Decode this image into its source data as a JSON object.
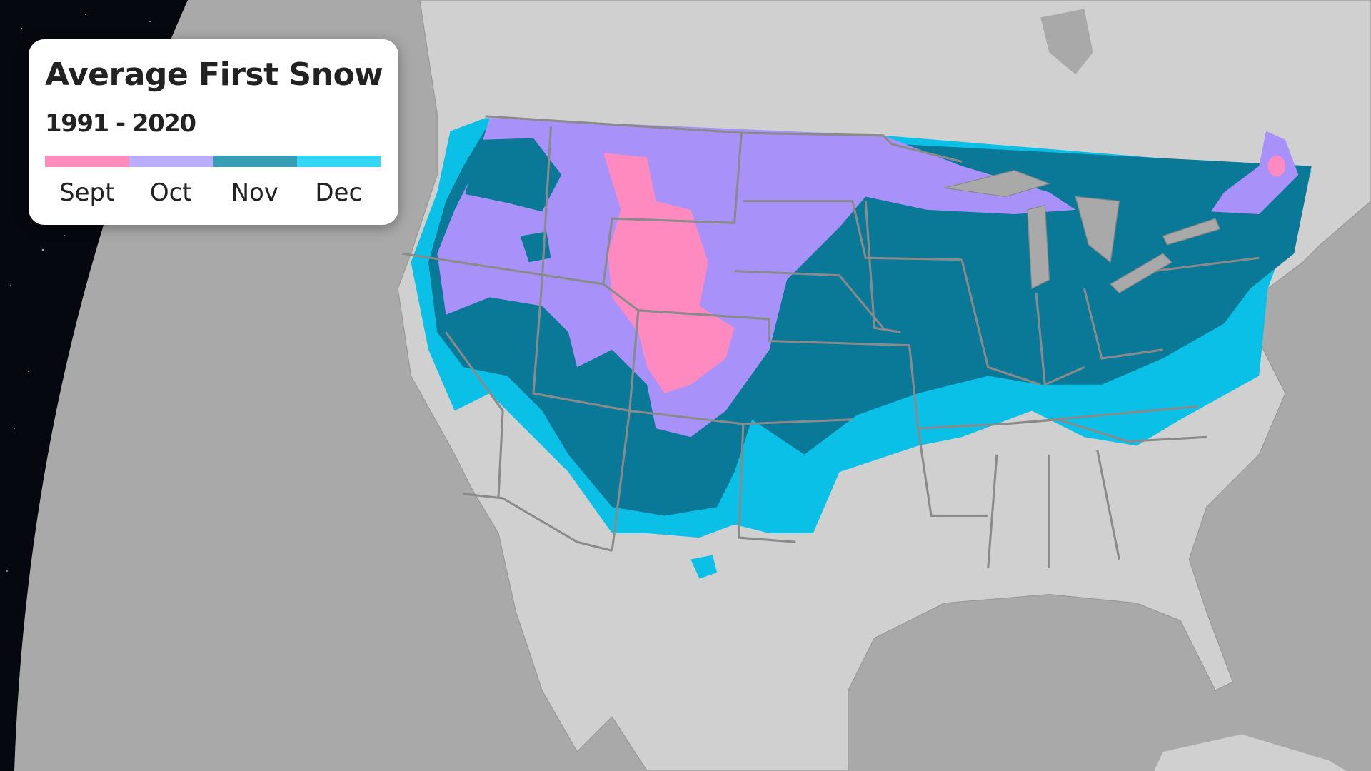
{
  "legend": {
    "title": "Average First Snow",
    "subtitle": "1991 - 2020",
    "items": [
      {
        "label": "Sept",
        "color": "#ff8cbd"
      },
      {
        "label": "Oct",
        "color": "#b9adfc"
      },
      {
        "label": "Nov",
        "color": "#389db6"
      },
      {
        "label": "Dec",
        "color": "#33d8f6"
      }
    ]
  },
  "map_colors": {
    "sept": "#ff8ac0",
    "oct": "#a892fa",
    "nov": "#0a7897",
    "dec": "#0bc0e6",
    "land": "#d0d0d0",
    "ocean": "#a9a9a9",
    "space": "#06080f"
  }
}
